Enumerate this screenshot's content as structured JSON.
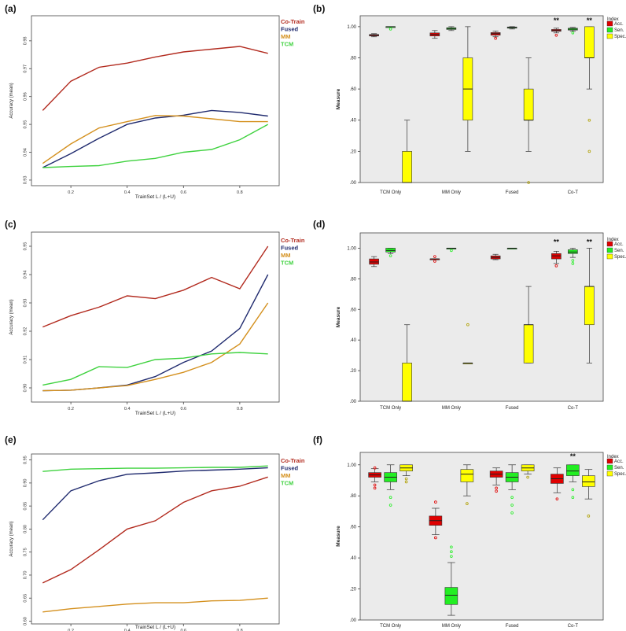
{
  "colors": {
    "cotrain": "#b22a1e",
    "fused": "#1f2a6e",
    "mm": "#d4901e",
    "tcm": "#3fd23f",
    "acc": "#e00000",
    "sen": "#22ee22",
    "spec": "#ffff00",
    "plotbg": "#ebebeb"
  },
  "panels": {
    "a": "(a)",
    "b": "(b)",
    "c": "(c)",
    "d": "(d)",
    "e": "(e)",
    "f": "(f)"
  },
  "chart_data": [
    {
      "id": "a",
      "type": "line",
      "xlabel": "TrainSet  L / (L+U)",
      "ylabel": "Accuracy (mean)",
      "xlim": [
        0.06,
        0.94
      ],
      "ylim": [
        0.928,
        0.989
      ],
      "xticks": [
        0.2,
        0.4,
        0.6,
        0.8
      ],
      "xtick_labels": [
        "0.2",
        "0.4",
        "0.6",
        "0.8"
      ],
      "yticks": [
        0.93,
        0.94,
        0.95,
        0.96,
        0.97,
        0.98
      ],
      "ytick_labels": [
        "0.93",
        "0.94",
        "0.95",
        "0.96",
        "0.97",
        "0.98"
      ],
      "x": [
        0.1,
        0.2,
        0.3,
        0.4,
        0.5,
        0.6,
        0.7,
        0.8,
        0.9
      ],
      "series": [
        {
          "name": "Co-Train",
          "color_key": "cotrain",
          "values": [
            0.955,
            0.9655,
            0.9705,
            0.972,
            0.9742,
            0.976,
            0.977,
            0.978,
            0.9755
          ]
        },
        {
          "name": "Fused",
          "color_key": "fused",
          "values": [
            0.9345,
            0.9395,
            0.945,
            0.95,
            0.9523,
            0.9533,
            0.955,
            0.9543,
            0.953
          ]
        },
        {
          "name": "MM",
          "color_key": "mm",
          "values": [
            0.936,
            0.943,
            0.9487,
            0.951,
            0.9532,
            0.953,
            0.952,
            0.951,
            0.951
          ]
        },
        {
          "name": "TCM",
          "color_key": "tcm",
          "values": [
            0.9345,
            0.9349,
            0.9352,
            0.9368,
            0.9378,
            0.94,
            0.941,
            0.9445,
            0.95
          ]
        }
      ]
    },
    {
      "id": "c",
      "type": "line",
      "xlabel": "TrainSet  L / (L+U)",
      "ylabel": "Accuracy (mean)",
      "xlim": [
        0.06,
        0.94
      ],
      "ylim": [
        0.895,
        0.955
      ],
      "xticks": [
        0.2,
        0.4,
        0.6,
        0.8
      ],
      "xtick_labels": [
        "0.2",
        "0.4",
        "0.6",
        "0.8"
      ],
      "yticks": [
        0.9,
        0.91,
        0.92,
        0.93,
        0.94,
        0.95
      ],
      "ytick_labels": [
        "0.90",
        "0.91",
        "0.92",
        "0.93",
        "0.94",
        "0.95"
      ],
      "x": [
        0.1,
        0.2,
        0.3,
        0.4,
        0.5,
        0.6,
        0.7,
        0.8,
        0.9
      ],
      "series": [
        {
          "name": "Co-Train",
          "color_key": "cotrain",
          "values": [
            0.9215,
            0.9255,
            0.9285,
            0.9325,
            0.9315,
            0.9345,
            0.939,
            0.935,
            0.95
          ]
        },
        {
          "name": "Fused",
          "color_key": "fused",
          "values": [
            0.899,
            0.8992,
            0.9,
            0.901,
            0.904,
            0.909,
            0.913,
            0.921,
            0.94
          ]
        },
        {
          "name": "MM",
          "color_key": "mm",
          "values": [
            0.899,
            0.8992,
            0.9,
            0.9008,
            0.903,
            0.9055,
            0.909,
            0.9155,
            0.93
          ]
        },
        {
          "name": "TCM",
          "color_key": "tcm",
          "values": [
            0.901,
            0.903,
            0.9075,
            0.9072,
            0.91,
            0.9105,
            0.912,
            0.9125,
            0.912
          ]
        }
      ]
    },
    {
      "id": "e",
      "type": "line",
      "xlabel": "TrainSet  L / (L+U)",
      "ylabel": "Accuracy (mean)",
      "xlim": [
        0.06,
        0.94
      ],
      "ylim": [
        0.594,
        0.963
      ],
      "xticks": [
        0.2,
        0.4,
        0.6,
        0.8
      ],
      "xtick_labels": [
        "0.2",
        "0.4",
        "0.6",
        "0.8"
      ],
      "yticks": [
        0.6,
        0.65,
        0.7,
        0.75,
        0.8,
        0.85,
        0.9,
        0.95
      ],
      "ytick_labels": [
        "0.60",
        "0.65",
        "0.70",
        "0.75",
        "0.80",
        "0.85",
        "0.90",
        "0.95"
      ],
      "x": [
        0.1,
        0.2,
        0.3,
        0.4,
        0.5,
        0.6,
        0.7,
        0.8,
        0.9
      ],
      "series": [
        {
          "name": "Co-Train",
          "color_key": "cotrain",
          "values": [
            0.683,
            0.712,
            0.755,
            0.8,
            0.818,
            0.858,
            0.883,
            0.893,
            0.913
          ]
        },
        {
          "name": "Fused",
          "color_key": "fused",
          "values": [
            0.82,
            0.883,
            0.905,
            0.919,
            0.922,
            0.926,
            0.928,
            0.93,
            0.933
          ]
        },
        {
          "name": "MM",
          "color_key": "mm",
          "values": [
            0.62,
            0.627,
            0.632,
            0.637,
            0.64,
            0.64,
            0.644,
            0.645,
            0.65
          ]
        },
        {
          "name": "TCM",
          "color_key": "tcm",
          "values": [
            0.925,
            0.93,
            0.931,
            0.932,
            0.932,
            0.933,
            0.934,
            0.934,
            0.937
          ]
        }
      ]
    },
    {
      "id": "b",
      "type": "box",
      "ylabel": "Measure",
      "ylim": [
        0,
        1.07
      ],
      "yticks": [
        0,
        0.2,
        0.4,
        0.6,
        0.8,
        1.0
      ],
      "ytick_labels": [
        ".00",
        ".20",
        ".40",
        ".60",
        ".80",
        "1.00"
      ],
      "legend_title": "Index",
      "legend": [
        {
          "label": "Acc.",
          "color_key": "acc"
        },
        {
          "label": "Sen.",
          "color_key": "sen"
        },
        {
          "label": "Spec.",
          "color_key": "spec"
        }
      ],
      "categories": [
        "TCM Only",
        "MM Only",
        "Fused",
        "Co-T"
      ],
      "groups": [
        {
          "boxes": [
            {
              "lw": 0.935,
              "q1": 0.94,
              "med": 0.945,
              "q3": 0.95,
              "uw": 0.955,
              "out": []
            },
            {
              "lw": 1.0,
              "q1": 1.0,
              "med": 1.0,
              "q3": 1.0,
              "uw": 1.0,
              "out": [
                0.985
              ]
            },
            {
              "lw": 0.0,
              "q1": 0.0,
              "med": 0.0,
              "q3": 0.2,
              "uw": 0.4,
              "out": []
            }
          ],
          "stars": ""
        },
        {
          "boxes": [
            {
              "lw": 0.925,
              "q1": 0.94,
              "med": 0.95,
              "q3": 0.96,
              "uw": 0.975,
              "out": []
            },
            {
              "lw": 0.975,
              "q1": 0.982,
              "med": 0.988,
              "q3": 0.993,
              "uw": 1.0,
              "out": []
            },
            {
              "lw": 0.2,
              "q1": 0.4,
              "med": 0.6,
              "q3": 0.8,
              "uw": 1.0,
              "out": []
            }
          ],
          "stars": ""
        },
        {
          "boxes": [
            {
              "lw": 0.935,
              "q1": 0.945,
              "med": 0.955,
              "q3": 0.962,
              "uw": 0.972,
              "out": [
                0.925
              ]
            },
            {
              "lw": 0.985,
              "q1": 0.99,
              "med": 0.995,
              "q3": 0.998,
              "uw": 1.0,
              "out": []
            },
            {
              "lw": 0.2,
              "q1": 0.4,
              "med": 0.4,
              "q3": 0.6,
              "uw": 0.8,
              "out": [
                0.0
              ]
            }
          ],
          "stars": ""
        },
        {
          "boxes": [
            {
              "lw": 0.96,
              "q1": 0.97,
              "med": 0.975,
              "q3": 0.982,
              "uw": 0.99,
              "out": [
                0.945
              ]
            },
            {
              "lw": 0.97,
              "q1": 0.978,
              "med": 0.984,
              "q3": 0.99,
              "uw": 0.995,
              "out": [
                0.96
              ]
            },
            {
              "lw": 0.6,
              "q1": 0.8,
              "med": 0.8,
              "q3": 1.0,
              "uw": 1.0,
              "out": [
                0.4,
                0.2
              ]
            }
          ],
          "stars": "**",
          "stars_spec": "**"
        }
      ]
    },
    {
      "id": "d",
      "type": "box",
      "ylabel": "Measure",
      "ylim": [
        0,
        1.1
      ],
      "yticks": [
        0,
        0.2,
        0.4,
        0.6,
        0.8,
        1.0
      ],
      "ytick_labels": [
        ".00",
        ".20",
        ".40",
        ".60",
        ".80",
        "1.00"
      ],
      "legend_title": "Index",
      "legend": [
        {
          "label": "Acc.",
          "color_key": "acc"
        },
        {
          "label": "Sen.",
          "color_key": "sen"
        },
        {
          "label": "Spec.",
          "color_key": "spec"
        }
      ],
      "categories": [
        "TCM Only",
        "MM Only",
        "Fused",
        "Co-T"
      ],
      "groups": [
        {
          "boxes": [
            {
              "lw": 0.88,
              "q1": 0.895,
              "med": 0.91,
              "q3": 0.93,
              "uw": 0.945,
              "out": []
            },
            {
              "lw": 0.965,
              "q1": 0.975,
              "med": 0.985,
              "q3": 1.0,
              "uw": 1.0,
              "out": [
                0.95
              ]
            },
            {
              "lw": 0.0,
              "q1": 0.0,
              "med": 0.0,
              "q3": 0.25,
              "uw": 0.5,
              "out": []
            }
          ],
          "stars": ""
        },
        {
          "boxes": [
            {
              "lw": 0.93,
              "q1": 0.93,
              "med": 0.93,
              "q3": 0.93,
              "uw": 0.93,
              "out": [
                0.945,
                0.915
              ]
            },
            {
              "lw": 1.0,
              "q1": 1.0,
              "med": 1.0,
              "q3": 1.0,
              "uw": 1.0,
              "out": [
                0.985
              ]
            },
            {
              "lw": 0.25,
              "q1": 0.25,
              "med": 0.25,
              "q3": 0.25,
              "uw": 0.25,
              "out": [
                0.5
              ]
            }
          ],
          "stars": ""
        },
        {
          "boxes": [
            {
              "lw": 0.925,
              "q1": 0.93,
              "med": 0.94,
              "q3": 0.95,
              "uw": 0.96,
              "out": []
            },
            {
              "lw": 1.0,
              "q1": 1.0,
              "med": 1.0,
              "q3": 1.0,
              "uw": 1.0,
              "out": []
            },
            {
              "lw": 0.25,
              "q1": 0.25,
              "med": 0.5,
              "q3": 0.5,
              "uw": 0.75,
              "out": []
            }
          ],
          "stars": ""
        },
        {
          "boxes": [
            {
              "lw": 0.9,
              "q1": 0.93,
              "med": 0.95,
              "q3": 0.965,
              "uw": 0.98,
              "out": [
                0.885
              ]
            },
            {
              "lw": 0.94,
              "q1": 0.965,
              "med": 0.975,
              "q3": 0.99,
              "uw": 1.0,
              "out": [
                0.92,
                0.9
              ]
            },
            {
              "lw": 0.25,
              "q1": 0.5,
              "med": 0.75,
              "q3": 0.75,
              "uw": 1.0,
              "out": []
            }
          ],
          "stars": "**",
          "stars_spec": "**"
        }
      ]
    },
    {
      "id": "f",
      "type": "box",
      "ylabel": "Measure",
      "ylim": [
        0,
        1.08
      ],
      "yticks": [
        0,
        0.2,
        0.4,
        0.6,
        0.8,
        1.0
      ],
      "ytick_labels": [
        ".00",
        ".20",
        ".40",
        ".60",
        ".80",
        "1.00"
      ],
      "legend_title": "Index",
      "legend": [
        {
          "label": "Acc.",
          "color_key": "acc"
        },
        {
          "label": "Sen.",
          "color_key": "sen"
        },
        {
          "label": "Spec.",
          "color_key": "spec"
        }
      ],
      "categories": [
        "TCM Only",
        "MM Only",
        "Fused",
        "Co-T"
      ],
      "groups": [
        {
          "boxes": [
            {
              "lw": 0.89,
              "q1": 0.92,
              "med": 0.935,
              "q3": 0.95,
              "uw": 0.975,
              "out": [
                0.87,
                0.85,
                0.98
              ]
            },
            {
              "lw": 0.84,
              "q1": 0.89,
              "med": 0.92,
              "q3": 0.95,
              "uw": 1.0,
              "out": [
                0.79,
                0.74
              ]
            },
            {
              "lw": 0.93,
              "q1": 0.96,
              "med": 0.98,
              "q3": 1.0,
              "uw": 1.0,
              "out": [
                0.91,
                0.89
              ]
            }
          ],
          "stars": ""
        },
        {
          "boxes": [
            {
              "lw": 0.55,
              "q1": 0.61,
              "med": 0.64,
              "q3": 0.67,
              "uw": 0.72,
              "out": [
                0.76,
                0.53
              ]
            },
            {
              "lw": 0.03,
              "q1": 0.1,
              "med": 0.16,
              "q3": 0.21,
              "uw": 0.37,
              "out": [
                0.41,
                0.44,
                0.47
              ]
            },
            {
              "lw": 0.8,
              "q1": 0.89,
              "med": 0.94,
              "q3": 0.97,
              "uw": 1.0,
              "out": [
                0.75
              ]
            }
          ],
          "stars": ""
        },
        {
          "boxes": [
            {
              "lw": 0.87,
              "q1": 0.92,
              "med": 0.94,
              "q3": 0.96,
              "uw": 0.98,
              "out": [
                0.85,
                0.83
              ]
            },
            {
              "lw": 0.84,
              "q1": 0.89,
              "med": 0.92,
              "q3": 0.95,
              "uw": 1.0,
              "out": [
                0.79,
                0.74,
                0.69
              ]
            },
            {
              "lw": 0.94,
              "q1": 0.96,
              "med": 0.98,
              "q3": 1.0,
              "uw": 1.0,
              "out": [
                0.92
              ]
            }
          ],
          "stars": ""
        },
        {
          "boxes": [
            {
              "lw": 0.82,
              "q1": 0.88,
              "med": 0.91,
              "q3": 0.94,
              "uw": 0.98,
              "out": [
                0.78
              ]
            },
            {
              "lw": 0.89,
              "q1": 0.93,
              "med": 0.96,
              "q3": 1.0,
              "uw": 1.0,
              "out": [
                0.84,
                0.79
              ]
            },
            {
              "lw": 0.78,
              "q1": 0.86,
              "med": 0.89,
              "q3": 0.93,
              "uw": 0.97,
              "out": [
                0.67
              ]
            }
          ],
          "stars_sen": "**"
        }
      ]
    }
  ]
}
